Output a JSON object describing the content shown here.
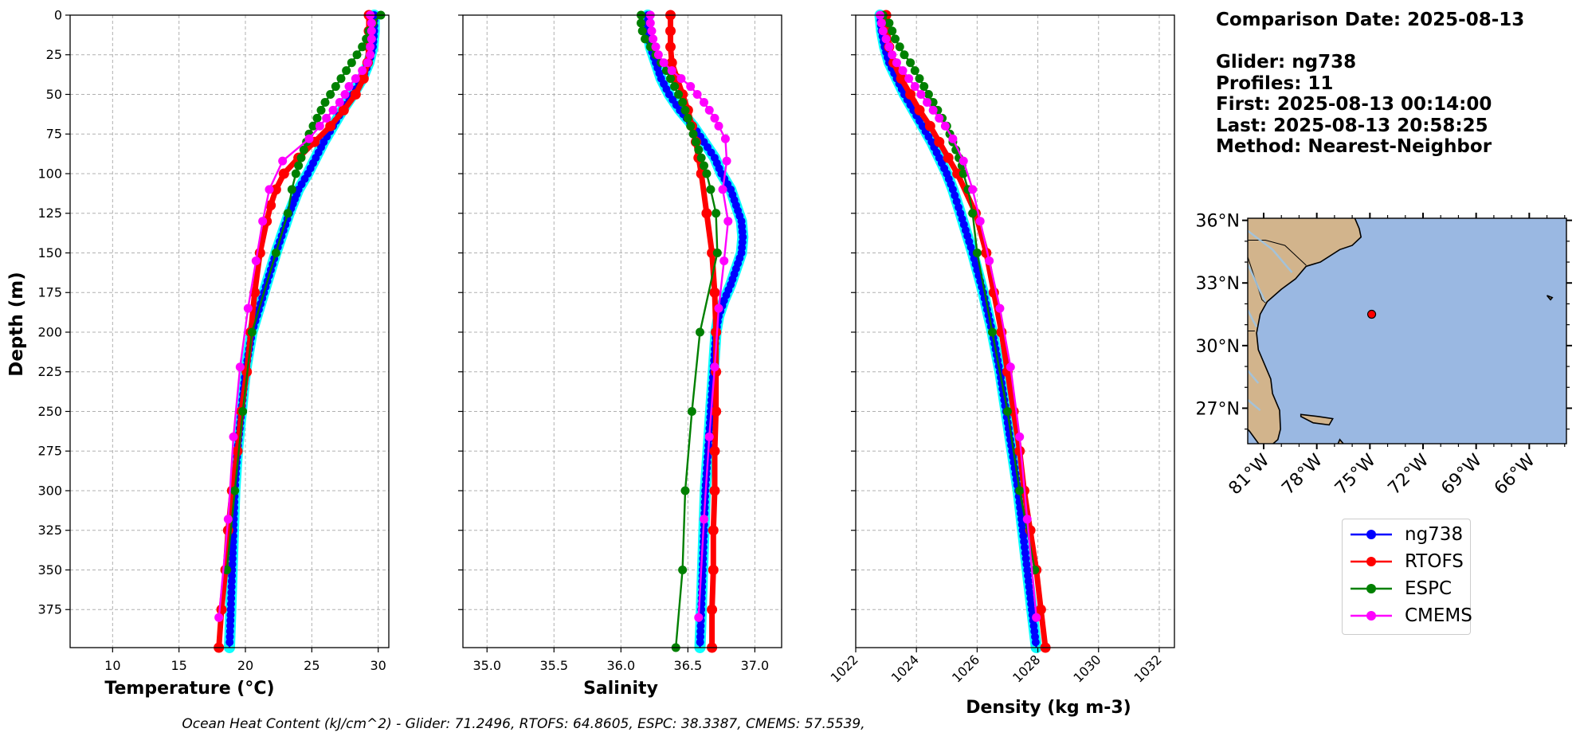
{
  "info": {
    "comparison_date": "Comparison Date: 2025-08-13",
    "glider": "Glider: ng738",
    "profiles": "Profiles: 11",
    "first": "First: 2025-08-13 00:14:00",
    "last": "Last: 2025-08-13 20:58:25",
    "method": "Method: Nearest-Neighbor"
  },
  "footer": "Ocean Heat Content (kJ/cm^2) - Glider: 71.2496,  RTOFS: 64.8605,  ESPC: 38.3387,  CMEMS: 57.5539,",
  "colors": {
    "ng738": "#0000ff",
    "ng738_raw": "#00ffff",
    "RTOFS": "#ff0000",
    "ESPC": "#008000",
    "CMEMS": "#ff00ff",
    "ocean": "#9ab8e2",
    "land": "#d2b48c"
  },
  "legend": [
    {
      "name": "ng738",
      "color": "#0000ff"
    },
    {
      "name": "RTOFS",
      "color": "#ff0000"
    },
    {
      "name": "ESPC",
      "color": "#008000"
    },
    {
      "name": "CMEMS",
      "color": "#ff00ff"
    }
  ],
  "chart_data": [
    {
      "type": "line",
      "panel": "temperature",
      "xlabel": "Temperature (°C)",
      "ylabel": "Depth (m)",
      "xlim": [
        6.8,
        30.8
      ],
      "ylim": [
        399,
        0
      ],
      "xticks": [
        10,
        15,
        20,
        25,
        30
      ],
      "yticks": [
        0,
        25,
        50,
        75,
        100,
        125,
        150,
        175,
        200,
        225,
        250,
        275,
        300,
        325,
        350,
        375
      ],
      "grid": true,
      "series": [
        {
          "name": "ng738",
          "depth": [
            0,
            10,
            20,
            30,
            40,
            50,
            60,
            70,
            80,
            90,
            100,
            110,
            125,
            150,
            175,
            200,
            225,
            250,
            275,
            300,
            325,
            350,
            375,
            399
          ],
          "values": [
            29.7,
            29.7,
            29.6,
            29.3,
            28.8,
            28.1,
            27.3,
            26.6,
            25.9,
            25.3,
            24.7,
            24.0,
            23.3,
            22.3,
            21.4,
            20.5,
            20.0,
            19.7,
            19.4,
            19.2,
            19.1,
            19.0,
            18.9,
            18.8
          ]
        },
        {
          "name": "RTOFS",
          "depth": [
            0,
            10,
            20,
            30,
            40,
            50,
            60,
            70,
            80,
            90,
            100,
            110,
            120,
            130,
            150,
            175,
            200,
            225,
            250,
            275,
            300,
            325,
            350,
            375,
            399
          ],
          "values": [
            29.3,
            29.3,
            29.3,
            29.2,
            28.9,
            28.3,
            27.4,
            26.4,
            25.2,
            24.0,
            22.9,
            22.3,
            21.9,
            21.6,
            21.1,
            20.7,
            20.4,
            20.1,
            19.7,
            19.4,
            19.0,
            18.7,
            18.5,
            18.2,
            18.0
          ]
        },
        {
          "name": "ESPC",
          "depth": [
            0,
            5,
            10,
            15,
            20,
            25,
            30,
            35,
            40,
            45,
            50,
            55,
            60,
            65,
            70,
            75,
            80,
            85,
            90,
            95,
            100,
            110,
            125,
            150,
            200,
            250,
            300,
            350
          ],
          "values": [
            30.2,
            29.6,
            29.3,
            29.1,
            28.8,
            28.4,
            28.0,
            27.6,
            27.2,
            26.8,
            26.4,
            26.0,
            25.7,
            25.4,
            25.1,
            24.8,
            24.6,
            24.4,
            24.2,
            24.0,
            23.8,
            23.5,
            23.2,
            22.3,
            20.5,
            19.8,
            19.2,
            18.6
          ]
        },
        {
          "name": "CMEMS",
          "depth": [
            0,
            5,
            10,
            15,
            20,
            25,
            30,
            35,
            40,
            45,
            50,
            55,
            60,
            65,
            70,
            78,
            92,
            110,
            130,
            155,
            185,
            222,
            266,
            318,
            380
          ],
          "values": [
            29.4,
            29.5,
            29.5,
            29.5,
            29.4,
            29.4,
            29.2,
            28.8,
            28.3,
            27.8,
            27.5,
            27.1,
            26.6,
            26.1,
            25.6,
            24.8,
            22.8,
            21.8,
            21.3,
            20.8,
            20.2,
            19.6,
            19.1,
            18.7,
            18.0
          ]
        }
      ]
    },
    {
      "type": "line",
      "panel": "salinity",
      "xlabel": "Salinity",
      "xlim": [
        34.82,
        37.2
      ],
      "ylim": [
        399,
        0
      ],
      "xticks": [
        35.0,
        35.5,
        36.0,
        36.5,
        37.0
      ],
      "xtick_labels": [
        "35.0",
        "35.5",
        "36.0",
        "36.5",
        "37.0"
      ],
      "grid": true,
      "series": [
        {
          "name": "ng738",
          "depth": [
            0,
            10,
            20,
            30,
            40,
            50,
            60,
            70,
            80,
            90,
            100,
            110,
            120,
            130,
            140,
            150,
            160,
            170,
            180,
            190,
            200,
            225,
            250,
            275,
            300,
            325,
            350,
            375,
            399
          ],
          "values": [
            36.2,
            36.2,
            36.22,
            36.26,
            36.3,
            36.36,
            36.44,
            36.54,
            36.62,
            36.7,
            36.75,
            36.82,
            36.86,
            36.9,
            36.91,
            36.9,
            36.86,
            36.82,
            36.77,
            36.73,
            36.71,
            36.69,
            36.67,
            36.65,
            36.63,
            36.62,
            36.61,
            36.6,
            36.59
          ]
        },
        {
          "name": "RTOFS",
          "depth": [
            0,
            10,
            20,
            30,
            40,
            50,
            60,
            70,
            80,
            90,
            100,
            125,
            150,
            175,
            200,
            225,
            250,
            275,
            300,
            325,
            350,
            375,
            399
          ],
          "values": [
            36.37,
            36.37,
            36.37,
            36.38,
            36.42,
            36.46,
            36.5,
            36.53,
            36.56,
            36.58,
            36.6,
            36.64,
            36.68,
            36.7,
            36.71,
            36.71,
            36.71,
            36.7,
            36.7,
            36.69,
            36.69,
            36.68,
            36.68
          ]
        },
        {
          "name": "ESPC",
          "depth": [
            0,
            5,
            10,
            15,
            20,
            25,
            30,
            35,
            40,
            45,
            50,
            55,
            60,
            65,
            70,
            75,
            80,
            85,
            90,
            95,
            100,
            110,
            125,
            150,
            200,
            250,
            300,
            350,
            399
          ],
          "values": [
            36.15,
            36.15,
            36.16,
            36.18,
            36.22,
            36.26,
            36.3,
            36.34,
            36.37,
            36.4,
            36.43,
            36.46,
            36.48,
            36.5,
            36.52,
            36.54,
            36.56,
            36.58,
            36.6,
            36.62,
            36.64,
            36.67,
            36.71,
            36.72,
            36.59,
            36.53,
            36.48,
            36.46,
            36.41
          ]
        },
        {
          "name": "CMEMS",
          "depth": [
            0,
            5,
            10,
            15,
            20,
            25,
            30,
            35,
            40,
            45,
            50,
            55,
            60,
            65,
            70,
            78,
            92,
            110,
            130,
            155,
            185,
            222,
            266,
            318,
            380
          ],
          "values": [
            36.22,
            36.22,
            36.23,
            36.24,
            36.26,
            36.28,
            36.32,
            36.38,
            36.45,
            36.52,
            36.57,
            36.62,
            36.66,
            36.7,
            36.73,
            36.78,
            36.79,
            36.76,
            36.8,
            36.77,
            36.73,
            36.7,
            36.66,
            36.62,
            36.58
          ]
        }
      ]
    },
    {
      "type": "line",
      "panel": "density",
      "xlabel": "Density (kg m-3)",
      "xlim": [
        1022,
        1032.5
      ],
      "ylim": [
        399,
        0
      ],
      "xticks": [
        1022,
        1024,
        1026,
        1028,
        1030,
        1032
      ],
      "grid": true,
      "series": [
        {
          "name": "ng738",
          "depth": [
            0,
            10,
            20,
            30,
            40,
            50,
            60,
            70,
            80,
            90,
            100,
            110,
            125,
            150,
            175,
            200,
            225,
            250,
            275,
            300,
            325,
            350,
            375,
            399
          ],
          "values": [
            1022.8,
            1022.85,
            1022.95,
            1023.1,
            1023.35,
            1023.6,
            1023.9,
            1024.2,
            1024.5,
            1024.75,
            1025.0,
            1025.2,
            1025.45,
            1025.85,
            1026.2,
            1026.5,
            1026.75,
            1026.95,
            1027.15,
            1027.35,
            1027.5,
            1027.65,
            1027.8,
            1027.95
          ]
        },
        {
          "name": "RTOFS",
          "depth": [
            0,
            10,
            20,
            30,
            40,
            50,
            60,
            70,
            80,
            90,
            100,
            125,
            150,
            175,
            200,
            225,
            250,
            275,
            300,
            325,
            350,
            375,
            399
          ],
          "values": [
            1023.0,
            1023.05,
            1023.1,
            1023.25,
            1023.5,
            1023.8,
            1024.1,
            1024.45,
            1024.75,
            1025.05,
            1025.35,
            1025.95,
            1026.3,
            1026.55,
            1026.8,
            1027.0,
            1027.2,
            1027.4,
            1027.55,
            1027.75,
            1027.95,
            1028.1,
            1028.25
          ]
        },
        {
          "name": "ESPC",
          "depth": [
            0,
            5,
            10,
            15,
            20,
            25,
            30,
            35,
            40,
            45,
            50,
            55,
            60,
            65,
            70,
            75,
            80,
            85,
            90,
            95,
            100,
            110,
            125,
            150,
            200,
            250,
            300,
            350
          ],
          "values": [
            1022.9,
            1023.1,
            1023.2,
            1023.3,
            1023.45,
            1023.6,
            1023.8,
            1023.95,
            1024.1,
            1024.25,
            1024.4,
            1024.55,
            1024.7,
            1024.85,
            1025.0,
            1025.1,
            1025.2,
            1025.3,
            1025.4,
            1025.5,
            1025.55,
            1025.7,
            1025.85,
            1026.0,
            1026.5,
            1027.0,
            1027.4,
            1027.9
          ]
        },
        {
          "name": "CMEMS",
          "depth": [
            0,
            5,
            10,
            15,
            20,
            25,
            30,
            35,
            40,
            45,
            50,
            55,
            60,
            65,
            70,
            78,
            92,
            110,
            130,
            155,
            185,
            222,
            266,
            318,
            380
          ],
          "values": [
            1022.8,
            1022.85,
            1022.9,
            1023.0,
            1023.1,
            1023.2,
            1023.35,
            1023.55,
            1023.75,
            1023.95,
            1024.15,
            1024.35,
            1024.55,
            1024.75,
            1024.95,
            1025.2,
            1025.55,
            1025.85,
            1026.1,
            1026.4,
            1026.75,
            1027.1,
            1027.4,
            1027.65,
            1027.95
          ]
        }
      ]
    }
  ],
  "map": {
    "lon_labels": [
      "81°W",
      "78°W",
      "75°W",
      "72°W",
      "69°W",
      "66°W"
    ],
    "lat_labels": [
      "36°N",
      "33°N",
      "30°N",
      "27°N"
    ],
    "lon_values": [
      -81,
      -78,
      -75,
      -72,
      -69,
      -66
    ],
    "lat_values": [
      36,
      33,
      30,
      27
    ],
    "extent": [
      -81.9,
      -63.9,
      25.3,
      36.1
    ],
    "glider_position": {
      "lon": -74.9,
      "lat": 31.5,
      "color": "#ff0000"
    }
  }
}
